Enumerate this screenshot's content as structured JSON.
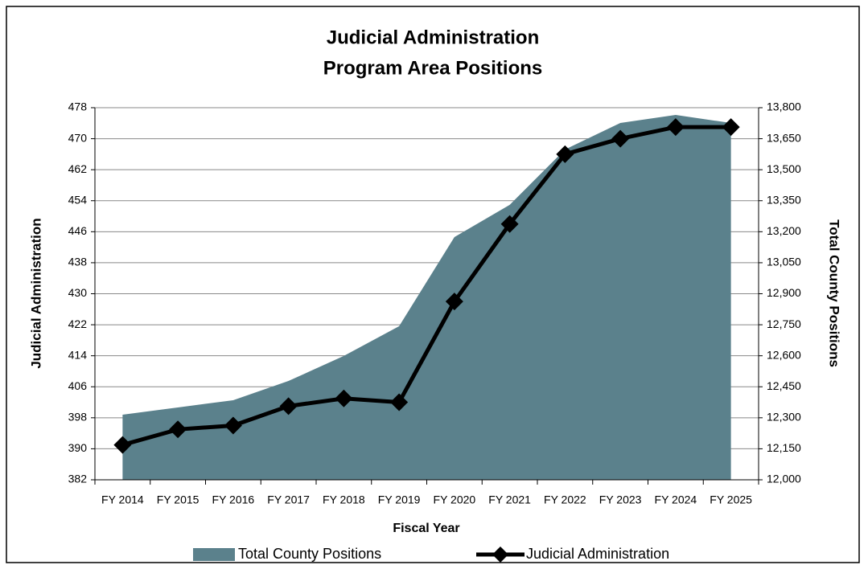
{
  "chart_data": {
    "type": "area-line",
    "title": [
      "Judicial Administration",
      "Program Area Positions"
    ],
    "x_label": "Fiscal Year",
    "y_label": "Judicial Administration",
    "y2_label": "Total County Positions",
    "categories": [
      "FY 2014",
      "FY 2015",
      "FY 2016",
      "FY 2017",
      "FY 2018",
      "FY 2019",
      "FY 2020",
      "FY 2021",
      "FY 2022",
      "FY 2023",
      "FY 2024",
      "FY 2025"
    ],
    "series": [
      {
        "name": "Total County Positions",
        "color": "#5b818c",
        "axis": "y2",
        "kind": "area",
        "values": [
          12315,
          12350,
          12385,
          12478,
          12599,
          12743,
          13174,
          13330,
          13598,
          13726,
          13765,
          13726
        ]
      },
      {
        "name": "Judicial Administration",
        "color": "#000000",
        "axis": "y",
        "kind": "line",
        "values": [
          391,
          395,
          396,
          401,
          403,
          402,
          428,
          448,
          466,
          470,
          473,
          473
        ]
      }
    ],
    "ylim": [
      382,
      478
    ],
    "yticks": [
      382,
      390,
      398,
      406,
      414,
      422,
      430,
      438,
      446,
      454,
      462,
      470,
      478
    ],
    "y2lim": [
      12000,
      13800
    ],
    "y2ticks": [
      {
        "value": 12000,
        "label": "12,000"
      },
      {
        "value": 12150,
        "label": "12,150"
      },
      {
        "value": 12300,
        "label": "12,300"
      },
      {
        "value": 12450,
        "label": "12,450"
      },
      {
        "value": 12600,
        "label": "12,600"
      },
      {
        "value": 12750,
        "label": "12,750"
      },
      {
        "value": 12900,
        "label": "12,900"
      },
      {
        "value": 13050,
        "label": "13,050"
      },
      {
        "value": 13200,
        "label": "13,200"
      },
      {
        "value": 13350,
        "label": "13,350"
      },
      {
        "value": 13500,
        "label": "13,500"
      },
      {
        "value": 13650,
        "label": "13,650"
      },
      {
        "value": 13800,
        "label": "13,800"
      }
    ],
    "grid": true
  }
}
